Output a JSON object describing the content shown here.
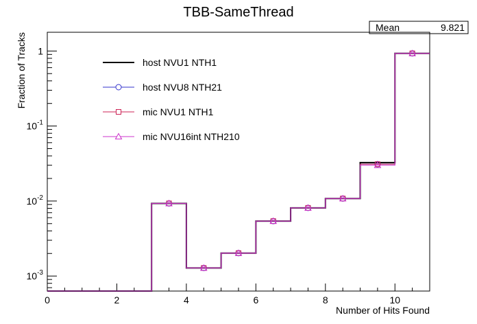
{
  "chart_data": {
    "type": "line",
    "title": "TBB-SameThread",
    "xlabel": "Number of Hits Found",
    "ylabel": "Fraction of Tracks",
    "xlim": [
      0,
      11
    ],
    "ylim_log10": [
      -3.2,
      0.25
    ],
    "y_scale": "log",
    "x_ticks": [
      0,
      2,
      4,
      6,
      8,
      10
    ],
    "x_tick_labels": [
      "0",
      "2",
      "4",
      "6",
      "8",
      "10"
    ],
    "y_ticks_log10": [
      -3,
      -2,
      -1,
      0
    ],
    "y_tick_labels": [
      {
        "base": "10",
        "exp": "-3"
      },
      {
        "base": "10",
        "exp": "-2"
      },
      {
        "base": "10",
        "exp": "-1"
      },
      {
        "base": "1",
        "exp": ""
      }
    ],
    "bin_edges": [
      0,
      1,
      2,
      3,
      4,
      5,
      6,
      7,
      8,
      9,
      10,
      11
    ],
    "series": [
      {
        "name": "host NVU1 NTH1",
        "style": "hist",
        "color": "#000000",
        "values": [
          0,
          0,
          0,
          0.0093,
          0.00128,
          0.00202,
          0.0054,
          0.0081,
          0.0108,
          0.0325,
          0.93
        ]
      },
      {
        "name": "host NVU8 NTH21",
        "style": "marker-circle",
        "color": "#3333cc",
        "values": [
          0,
          0,
          0,
          0.0093,
          0.00128,
          0.00202,
          0.0054,
          0.0081,
          0.0108,
          0.031,
          0.93
        ]
      },
      {
        "name": "mic NVU1 NTH1",
        "style": "marker-square",
        "color": "#cc2255",
        "values": [
          0,
          0,
          0,
          0.0093,
          0.00128,
          0.00202,
          0.0054,
          0.0081,
          0.0108,
          0.031,
          0.93
        ]
      },
      {
        "name": "mic NVU16int NTH210",
        "style": "marker-triangle",
        "color": "#cc33cc",
        "values": [
          0,
          0,
          0,
          0.0093,
          0.00128,
          0.00202,
          0.0054,
          0.0081,
          0.0108,
          0.03,
          0.93
        ]
      }
    ],
    "stats": {
      "label": "Mean",
      "value": "9.821"
    },
    "legend_position": "top-left",
    "grid": false
  }
}
